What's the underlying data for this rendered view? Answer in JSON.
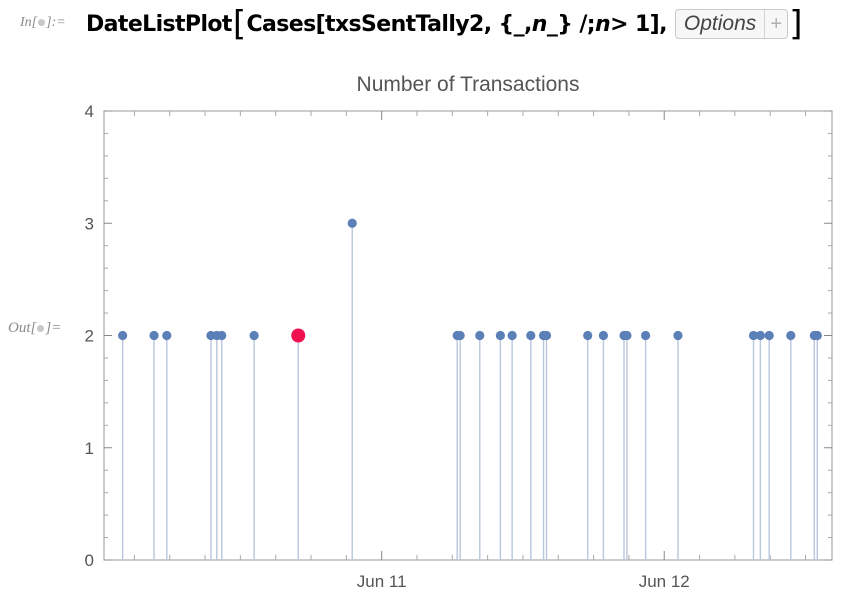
{
  "cell": {
    "in_prefix": "In[",
    "in_suffix": "]:=",
    "out_prefix": "Out[",
    "out_suffix": "]=",
    "input": {
      "func": "DateListPlot",
      "part1": "Cases[txsSentTally2, {_, ",
      "var": "n",
      "part2": "_} /; ",
      "var2": "n",
      "part3": " > 1], ",
      "options_label": "Options",
      "options_plus": "+",
      "close": "]"
    }
  },
  "chart_data": {
    "type": "scatter",
    "style": "stem",
    "title": "Number of Transactions",
    "ylim": [
      0,
      4
    ],
    "yticks": [
      "0",
      "1",
      "2",
      "3",
      "4"
    ],
    "xticks": [
      "Jun 11",
      "Jun 12"
    ],
    "grid": false,
    "colors": {
      "points": "#5b7fb7",
      "stems": "#b9c6dc",
      "highlight": "#f0104f",
      "frame": "#9a9a9a"
    },
    "highlight_index": 7,
    "series": [
      {
        "values": [
          {
            "x": "Jun 10 02:00",
            "y": 2
          },
          {
            "x": "Jun 10 04:40",
            "y": 2
          },
          {
            "x": "Jun 10 05:45",
            "y": 2
          },
          {
            "x": "Jun 10 09:30",
            "y": 2
          },
          {
            "x": "Jun 10 10:00",
            "y": 2
          },
          {
            "x": "Jun 10 10:25",
            "y": 2
          },
          {
            "x": "Jun 10 13:10",
            "y": 2
          },
          {
            "x": "Jun 10 16:55",
            "y": 2
          },
          {
            "x": "Jun 10 21:30",
            "y": 3
          },
          {
            "x": "Jun 11 06:25",
            "y": 2
          },
          {
            "x": "Jun 11 06:40",
            "y": 2
          },
          {
            "x": "Jun 11 08:20",
            "y": 2
          },
          {
            "x": "Jun 11 10:05",
            "y": 2
          },
          {
            "x": "Jun 11 11:05",
            "y": 2
          },
          {
            "x": "Jun 11 12:40",
            "y": 2
          },
          {
            "x": "Jun 11 13:45",
            "y": 2
          },
          {
            "x": "Jun 11 14:00",
            "y": 2
          },
          {
            "x": "Jun 11 17:30",
            "y": 2
          },
          {
            "x": "Jun 11 18:50",
            "y": 2
          },
          {
            "x": "Jun 11 20:35",
            "y": 2
          },
          {
            "x": "Jun 11 20:50",
            "y": 2
          },
          {
            "x": "Jun 11 22:25",
            "y": 2
          },
          {
            "x": "Jun 12 01:10",
            "y": 2
          },
          {
            "x": "Jun 12 07:35",
            "y": 2
          },
          {
            "x": "Jun 12 08:10",
            "y": 2
          },
          {
            "x": "Jun 12 08:55",
            "y": 2
          },
          {
            "x": "Jun 12 10:45",
            "y": 2
          },
          {
            "x": "Jun 12 12:45",
            "y": 2
          },
          {
            "x": "Jun 12 13:00",
            "y": 2
          }
        ]
      }
    ],
    "xlim": [
      "Jun 10 00:25",
      "Jun 12 14:15"
    ]
  }
}
